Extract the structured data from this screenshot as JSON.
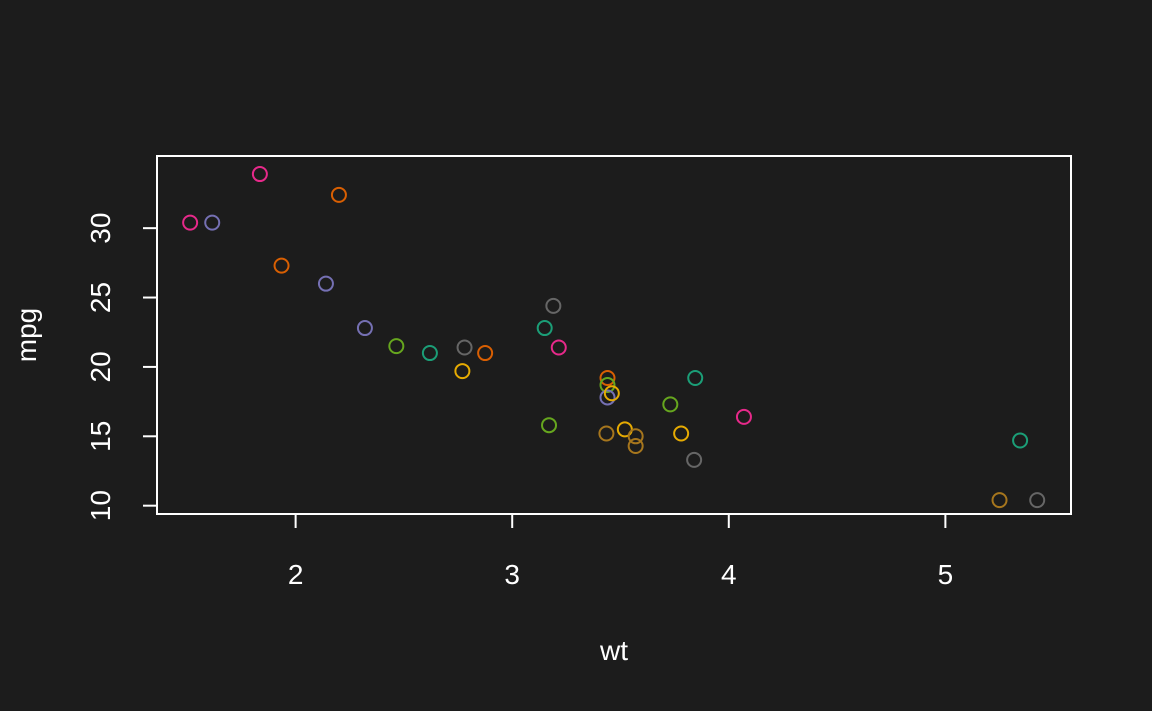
{
  "chart_data": {
    "type": "scatter",
    "title": "",
    "xlabel": "wt",
    "ylabel": "mpg",
    "xlim": [
      1.36,
      5.58
    ],
    "ylim": [
      9.4,
      35.2
    ],
    "x_ticks": [
      2,
      3,
      4,
      5
    ],
    "y_ticks": [
      10,
      15,
      20,
      25,
      30
    ],
    "grid": false,
    "background": "#1c1c1c",
    "foreground": "#ffffff",
    "points": [
      {
        "x": 1.513,
        "y": 30.4,
        "color": "#E7298A"
      },
      {
        "x": 1.615,
        "y": 30.4,
        "color": "#7570B3"
      },
      {
        "x": 1.835,
        "y": 33.9,
        "color": "#E7298A"
      },
      {
        "x": 1.935,
        "y": 27.3,
        "color": "#D95F02"
      },
      {
        "x": 2.14,
        "y": 26.0,
        "color": "#7570B3"
      },
      {
        "x": 2.2,
        "y": 32.4,
        "color": "#D95F02"
      },
      {
        "x": 2.32,
        "y": 22.8,
        "color": "#7570B3"
      },
      {
        "x": 2.465,
        "y": 21.5,
        "color": "#66A61E"
      },
      {
        "x": 2.62,
        "y": 21.0,
        "color": "#1B9E77"
      },
      {
        "x": 2.77,
        "y": 19.7,
        "color": "#E6AB02"
      },
      {
        "x": 2.78,
        "y": 21.4,
        "color": "#666666"
      },
      {
        "x": 2.875,
        "y": 21.0,
        "color": "#D95F02"
      },
      {
        "x": 3.15,
        "y": 22.8,
        "color": "#1B9E77"
      },
      {
        "x": 3.17,
        "y": 15.8,
        "color": "#66A61E"
      },
      {
        "x": 3.19,
        "y": 24.4,
        "color": "#666666"
      },
      {
        "x": 3.215,
        "y": 21.4,
        "color": "#E7298A"
      },
      {
        "x": 3.435,
        "y": 15.2,
        "color": "#A6761D"
      },
      {
        "x": 3.44,
        "y": 19.2,
        "color": "#D95F02"
      },
      {
        "x": 3.44,
        "y": 18.7,
        "color": "#66A61E"
      },
      {
        "x": 3.44,
        "y": 17.8,
        "color": "#7570B3"
      },
      {
        "x": 3.46,
        "y": 18.1,
        "color": "#E6AB02"
      },
      {
        "x": 3.52,
        "y": 15.5,
        "color": "#E6AB02"
      },
      {
        "x": 3.57,
        "y": 15.0,
        "color": "#A6761D"
      },
      {
        "x": 3.57,
        "y": 14.3,
        "color": "#A6761D"
      },
      {
        "x": 3.73,
        "y": 17.3,
        "color": "#66A61E"
      },
      {
        "x": 3.78,
        "y": 15.2,
        "color": "#E6AB02"
      },
      {
        "x": 3.84,
        "y": 13.3,
        "color": "#666666"
      },
      {
        "x": 3.845,
        "y": 19.2,
        "color": "#1B9E77"
      },
      {
        "x": 4.07,
        "y": 16.4,
        "color": "#E7298A"
      },
      {
        "x": 5.25,
        "y": 10.4,
        "color": "#A6761D"
      },
      {
        "x": 5.345,
        "y": 14.7,
        "color": "#1B9E77"
      },
      {
        "x": 5.424,
        "y": 10.4,
        "color": "#666666"
      }
    ]
  }
}
